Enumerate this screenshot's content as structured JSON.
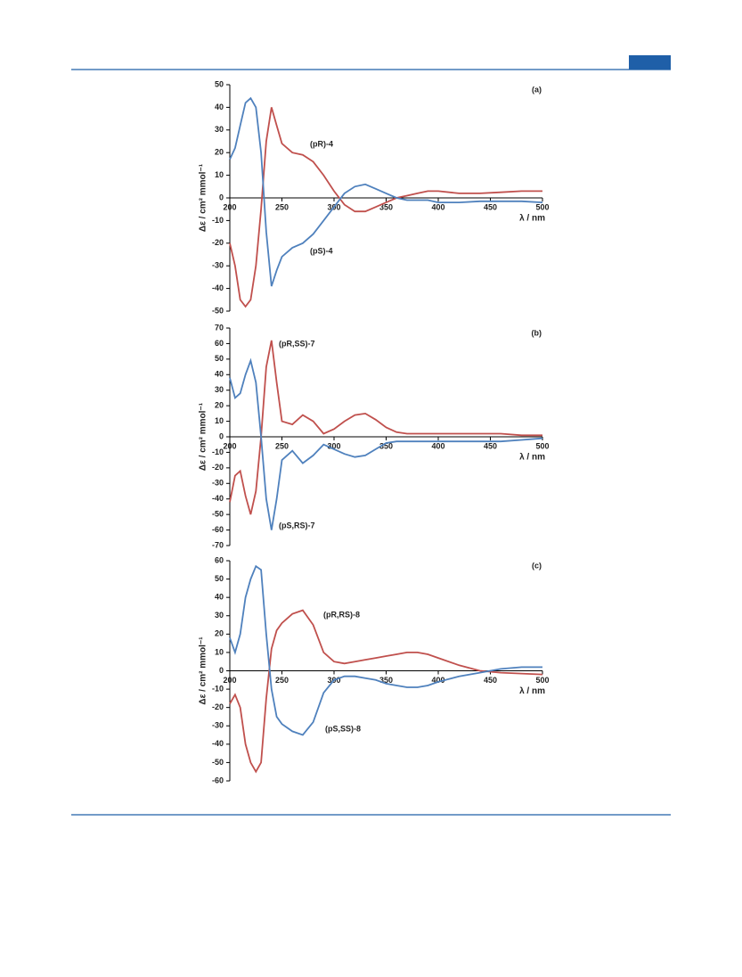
{
  "chart_data": [
    {
      "type": "line",
      "panel_label": "(a)",
      "xlabel": "λ / nm",
      "ylabel": "Δε / cm² mmol⁻¹",
      "x": [
        200,
        205,
        210,
        215,
        220,
        225,
        230,
        235,
        240,
        245,
        250,
        260,
        270,
        280,
        290,
        300,
        310,
        320,
        330,
        340,
        350,
        360,
        370,
        380,
        390,
        400,
        420,
        440,
        460,
        480,
        500
      ],
      "xlim": [
        200,
        500
      ],
      "xticks": [
        200,
        250,
        300,
        350,
        400,
        450,
        500
      ],
      "ylim": [
        -50,
        50
      ],
      "yticks": [
        -50,
        -40,
        -30,
        -20,
        -10,
        0,
        10,
        20,
        30,
        40,
        50
      ],
      "series": [
        {
          "name": "(pR)-4",
          "color": "#c0504d",
          "values": [
            -20,
            -30,
            -45,
            -48,
            -45,
            -30,
            -5,
            25,
            40,
            32,
            24,
            20,
            19,
            16,
            10,
            3,
            -3,
            -6,
            -6,
            -4,
            -2,
            0,
            1,
            2,
            3,
            3,
            2,
            2,
            2.5,
            3,
            3
          ]
        },
        {
          "name": "(pS)-4",
          "color": "#4f81bd",
          "values": [
            17,
            22,
            32,
            42,
            44,
            40,
            20,
            -15,
            -39,
            -32,
            -26,
            -22,
            -20,
            -16,
            -10,
            -4,
            2,
            5,
            6,
            4,
            2,
            0,
            -1,
            -1,
            -1,
            -2,
            -2,
            -1.5,
            -1.5,
            -1.5,
            -2
          ]
        }
      ]
    },
    {
      "type": "line",
      "panel_label": "(b)",
      "xlabel": "λ / nm",
      "ylabel": "Δε / cm² mmol⁻¹",
      "x": [
        200,
        205,
        210,
        215,
        220,
        225,
        230,
        235,
        240,
        245,
        250,
        260,
        270,
        280,
        290,
        300,
        310,
        320,
        330,
        340,
        350,
        360,
        370,
        380,
        390,
        400,
        420,
        440,
        460,
        480,
        500
      ],
      "xlim": [
        200,
        500
      ],
      "xticks": [
        200,
        250,
        300,
        350,
        400,
        450,
        500
      ],
      "ylim": [
        -70,
        70
      ],
      "yticks": [
        -70,
        -60,
        -50,
        -40,
        -30,
        -20,
        -10,
        0,
        10,
        20,
        30,
        40,
        50,
        60,
        70
      ],
      "series": [
        {
          "name": "(pR,SS)-7",
          "color": "#c0504d",
          "values": [
            -42,
            -25,
            -22,
            -38,
            -50,
            -35,
            0,
            45,
            62,
            35,
            10,
            8,
            14,
            10,
            2,
            5,
            10,
            14,
            15,
            11,
            6,
            3,
            2,
            2,
            2,
            2,
            2,
            2,
            2,
            1,
            1
          ]
        },
        {
          "name": "(pS,RS)-7",
          "color": "#4f81bd",
          "values": [
            38,
            25,
            28,
            40,
            49,
            35,
            0,
            -40,
            -60,
            -40,
            -15,
            -9,
            -17,
            -12,
            -5,
            -8,
            -11,
            -13,
            -12,
            -8,
            -4,
            -3,
            -3,
            -3,
            -3,
            -3,
            -3,
            -3,
            -3,
            -2,
            -1
          ]
        }
      ]
    },
    {
      "type": "line",
      "panel_label": "(c)",
      "xlabel": "λ / nm",
      "ylabel": "Δε / cm² mmol⁻¹",
      "x": [
        200,
        205,
        210,
        215,
        220,
        225,
        230,
        235,
        240,
        245,
        250,
        260,
        270,
        280,
        290,
        300,
        310,
        320,
        330,
        340,
        350,
        360,
        370,
        380,
        390,
        400,
        420,
        440,
        460,
        480,
        500
      ],
      "xlim": [
        200,
        500
      ],
      "xticks": [
        200,
        250,
        300,
        350,
        400,
        450,
        500
      ],
      "ylim": [
        -60,
        60
      ],
      "yticks": [
        -60,
        -50,
        -40,
        -30,
        -20,
        -10,
        0,
        10,
        20,
        30,
        40,
        50,
        60
      ],
      "series": [
        {
          "name": "(pR,RS)-8",
          "color": "#c0504d",
          "values": [
            -18,
            -13,
            -20,
            -40,
            -50,
            -55,
            -50,
            -15,
            12,
            22,
            26,
            31,
            33,
            25,
            10,
            5,
            4,
            5,
            6,
            7,
            8,
            9,
            10,
            10,
            9,
            7,
            3,
            0,
            -1,
            -1.5,
            -2
          ]
        },
        {
          "name": "(pS,SS)-8",
          "color": "#4f81bd",
          "values": [
            18,
            10,
            20,
            40,
            50,
            57,
            55,
            20,
            -10,
            -25,
            -29,
            -33,
            -35,
            -28,
            -12,
            -5,
            -3,
            -3,
            -4,
            -5,
            -7,
            -8,
            -9,
            -9,
            -8,
            -6,
            -3,
            -1,
            1,
            2,
            2
          ]
        }
      ]
    }
  ]
}
